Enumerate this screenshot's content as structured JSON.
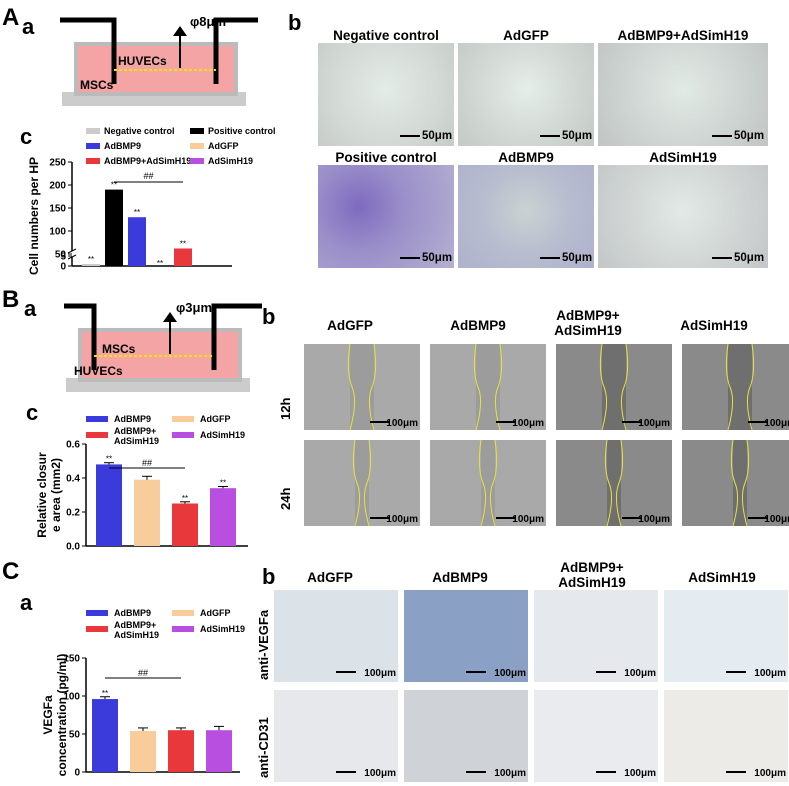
{
  "panelA": {
    "letter": "A",
    "a": {
      "letter": "a",
      "upper_cell": "HUVECs",
      "lower_cell": "MSCs",
      "pore": "φ8μm"
    },
    "b": {
      "letter": "b",
      "images": [
        {
          "title": "Negative control",
          "scale": "50μm"
        },
        {
          "title": "AdGFP",
          "scale": "50μm"
        },
        {
          "title": "AdBMP9+AdSimH19",
          "scale": "50μm"
        },
        {
          "title": "Positive control",
          "scale": "50μm"
        },
        {
          "title": "AdBMP9",
          "scale": "50μm"
        },
        {
          "title": "AdSimH19",
          "scale": "50μm"
        }
      ]
    },
    "c": {
      "letter": "c"
    }
  },
  "panelB": {
    "letter": "B",
    "a": {
      "letter": "a",
      "upper_cell": "MSCs",
      "lower_cell": "HUVECs",
      "pore": "φ3μm"
    },
    "b": {
      "letter": "b",
      "columns": [
        "AdGFP",
        "AdBMP9",
        "AdBMP9+\nAdSimH19",
        "AdSimH19"
      ],
      "rows": [
        "12h",
        "24h"
      ],
      "scale": "100μm"
    },
    "c": {
      "letter": "c"
    }
  },
  "panelC": {
    "letter": "C",
    "a": {
      "letter": "a"
    },
    "b": {
      "letter": "b",
      "columns": [
        "AdGFP",
        "AdBMP9",
        "AdBMP9+\nAdSimH19",
        "AdSimH19"
      ],
      "rows": [
        "anti-VEGFa",
        "anti-CD31"
      ],
      "scale": "100μm"
    }
  },
  "chart_data": [
    {
      "type": "bar",
      "id": "A-c",
      "ylabel": "Cell numbers per HP",
      "yticks": [
        "0",
        "5",
        "50",
        "100",
        "150",
        "200",
        "250"
      ],
      "axis_break": "between 5 and 50",
      "legend": [
        {
          "name": "Negative control",
          "color": "#cccccc"
        },
        {
          "name": "Positive control",
          "color": "#000000"
        },
        {
          "name": "AdBMP9",
          "color": "#3b3bdb"
        },
        {
          "name": "AdGFP",
          "color": "#f9cc9c"
        },
        {
          "name": "AdBMP9+AdSimH19",
          "color": "#e8383b"
        },
        {
          "name": "AdSimH19",
          "color": "#b84fe0"
        }
      ],
      "categories": [
        "Negative control",
        "Positive control",
        "AdBMP9",
        "AdGFP",
        "AdBMP9+AdSimH19",
        "AdSimH19"
      ],
      "values": [
        1,
        190,
        130,
        20,
        62,
        22
      ],
      "annotations": [
        "**",
        "**",
        "**",
        "**",
        "**",
        ""
      ],
      "comparison": "##"
    },
    {
      "type": "bar",
      "id": "B-c",
      "ylabel": "Relative closure area (mm2)",
      "yticks": [
        "0.0",
        "0.2",
        "0.4",
        "0.6"
      ],
      "ylim": [
        0,
        0.6
      ],
      "legend": [
        {
          "name": "AdBMP9",
          "color": "#3b3bdb"
        },
        {
          "name": "AdGFP",
          "color": "#f9cc9c"
        },
        {
          "name": "AdBMP9+\nAdSimH19",
          "color": "#e8383b"
        },
        {
          "name": "AdSimH19",
          "color": "#b84fe0"
        }
      ],
      "categories": [
        "AdBMP9",
        "AdGFP",
        "AdBMP9+AdSimH19",
        "AdSimH19"
      ],
      "values": [
        0.48,
        0.39,
        0.25,
        0.34
      ],
      "errors": [
        0.01,
        0.02,
        0.01,
        0.01
      ],
      "annotations": [
        "**",
        "",
        "**",
        "**"
      ],
      "comparison": "##"
    },
    {
      "type": "bar",
      "id": "C-a",
      "ylabel": "VEGFa concentration (pg/ml)",
      "yticks": [
        "0",
        "50",
        "100",
        "150"
      ],
      "ylim": [
        0,
        150
      ],
      "legend": [
        {
          "name": "AdBMP9",
          "color": "#3b3bdb"
        },
        {
          "name": "AdGFP",
          "color": "#f9cc9c"
        },
        {
          "name": "AdBMP9+\nAdSimH19",
          "color": "#e8383b"
        },
        {
          "name": "AdSimH19",
          "color": "#b84fe0"
        }
      ],
      "categories": [
        "AdBMP9",
        "AdGFP",
        "AdBMP9+AdSimH19",
        "AdSimH19"
      ],
      "values": [
        96,
        54,
        55,
        55
      ],
      "errors": [
        3,
        4,
        3,
        5
      ],
      "annotations": [
        "**",
        "",
        "",
        ""
      ],
      "comparison": "##"
    }
  ]
}
